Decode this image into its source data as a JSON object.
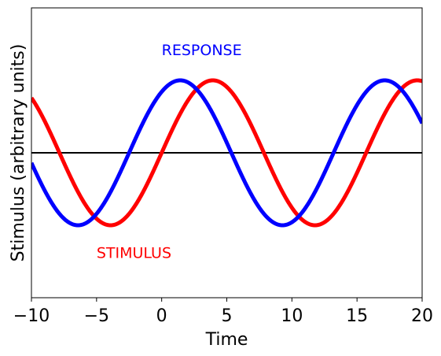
{
  "chart_data": {
    "type": "line",
    "title": "",
    "xlabel": "Time",
    "ylabel": "Stimulus (arbitrary units)",
    "xlim": [
      -10,
      20
    ],
    "ylim": [
      -2,
      2
    ],
    "x_ticks": [
      -10,
      -5,
      0,
      5,
      10,
      15,
      20
    ],
    "x_tick_labels": [
      "−10",
      "−5",
      "0",
      "5",
      "10",
      "15",
      "20"
    ],
    "y_ticks_shown": false,
    "grid": false,
    "legend": "none",
    "baseline": {
      "y": 0,
      "color": "#000000"
    },
    "series": [
      {
        "name": "STIMULUS",
        "color": "#ff0000",
        "function": "sin",
        "amplitude": 1.0,
        "period": 15.7,
        "phase_zero_at": 0,
        "x_range": [
          -10,
          20
        ]
      },
      {
        "name": "RESPONSE",
        "color": "#0000ff",
        "function": "sin",
        "amplitude": 1.0,
        "period": 15.7,
        "phase_zero_at": -2.5,
        "x_range": [
          -10,
          20
        ]
      }
    ],
    "annotations": [
      {
        "text": "RESPONSE",
        "x": 0,
        "y": 1.35,
        "color": "#0000ff"
      },
      {
        "text": "STIMULUS",
        "x": -5,
        "y": -1.45,
        "color": "#ff0000"
      }
    ]
  }
}
